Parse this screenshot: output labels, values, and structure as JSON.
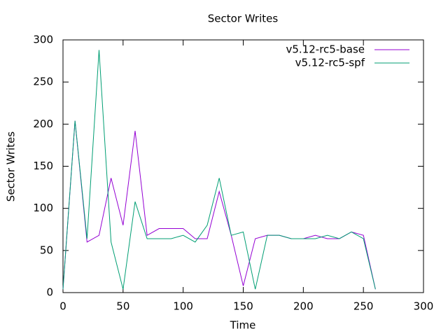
{
  "chart_data": {
    "type": "line",
    "title": "Sector Writes",
    "x_label": "Time",
    "y_label": "Sector Writes",
    "x": [
      0,
      10,
      20,
      30,
      40,
      50,
      60,
      70,
      80,
      90,
      100,
      110,
      120,
      130,
      140,
      150,
      160,
      170,
      180,
      190,
      200,
      210,
      220,
      230,
      240,
      250,
      260
    ],
    "series": [
      {
        "name": "v5.12-rc5-base",
        "color": "#9400d3",
        "values": [
          4,
          204,
          60,
          68,
          136,
          80,
          192,
          68,
          76,
          76,
          76,
          64,
          64,
          120,
          68,
          8,
          64,
          68,
          68,
          64,
          64,
          68,
          64,
          64,
          72,
          68,
          4
        ]
      },
      {
        "name": "v5.12-rc5-spf",
        "color": "#009e73",
        "values": [
          4,
          204,
          64,
          288,
          60,
          4,
          108,
          64,
          64,
          64,
          68,
          60,
          80,
          136,
          68,
          72,
          4,
          68,
          68,
          64,
          64,
          64,
          68,
          64,
          72,
          64,
          4
        ]
      }
    ],
    "xlim": [
      0,
      300
    ],
    "ylim": [
      0,
      300
    ],
    "xticks": [
      0,
      50,
      100,
      150,
      200,
      250,
      300
    ],
    "yticks": [
      0,
      50,
      100,
      150,
      200,
      250,
      300
    ],
    "legend": "top-right"
  }
}
